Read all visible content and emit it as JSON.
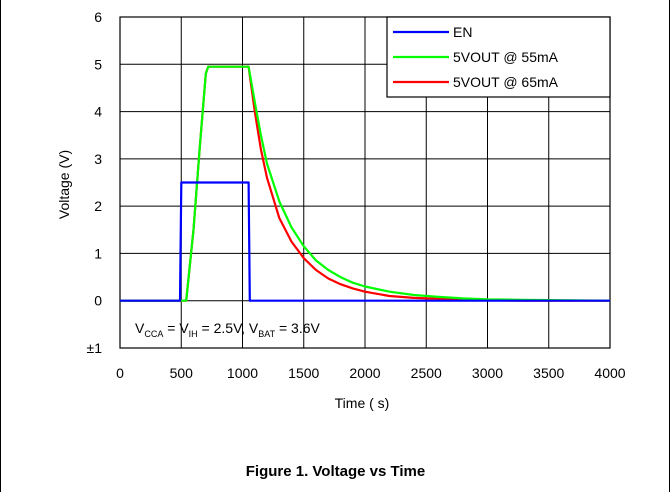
{
  "figure_caption": "Figure 1. Voltage vs Time",
  "chart_data": {
    "type": "line",
    "title": "",
    "xlabel": "Time (  s)",
    "ylabel": "Voltage (V)",
    "xlim": [
      0,
      4000
    ],
    "ylim": [
      -1,
      6
    ],
    "x_ticks": [
      0,
      500,
      1000,
      1500,
      2000,
      2500,
      3000,
      3500,
      4000
    ],
    "y_tick_labels": [
      "±1",
      "0",
      "1",
      "2",
      "3",
      "4",
      "5",
      "6"
    ],
    "y_ticks": [
      -1,
      0,
      1,
      2,
      3,
      4,
      5,
      6
    ],
    "grid": true,
    "legend_placement": "top-right",
    "annotation": {
      "parts": [
        {
          "t": "V",
          "sub": false
        },
        {
          "t": "CCA",
          "sub": true
        },
        {
          "t": " = V",
          "sub": false
        },
        {
          "t": "IH",
          "sub": true
        },
        {
          "t": " = 2.5V, V",
          "sub": false
        },
        {
          "t": "BAT",
          "sub": true
        },
        {
          "t": " = 3.6V",
          "sub": false
        }
      ]
    },
    "series": [
      {
        "name": "EN",
        "color": "#0000ff",
        "x": [
          0,
          490,
          500,
          1050,
          1060,
          4000
        ],
        "y": [
          0,
          0,
          2.5,
          2.5,
          0,
          0
        ]
      },
      {
        "name": "5VOUT @ 55mA",
        "color": "#00ff00",
        "x": [
          0,
          540,
          600,
          650,
          700,
          720,
          1050,
          1100,
          1150,
          1200,
          1300,
          1400,
          1500,
          1600,
          1700,
          1800,
          1900,
          2000,
          2200,
          2400,
          2600,
          2800,
          3000,
          3300,
          3600,
          4000
        ],
        "y": [
          0,
          0,
          1.5,
          3.2,
          4.8,
          4.95,
          4.95,
          4.2,
          3.5,
          2.9,
          2.1,
          1.55,
          1.15,
          0.85,
          0.65,
          0.5,
          0.38,
          0.3,
          0.19,
          0.12,
          0.08,
          0.05,
          0.03,
          0.02,
          0.01,
          0
        ]
      },
      {
        "name": "5VOUT @ 65mA",
        "color": "#ff0000",
        "x": [
          0,
          540,
          600,
          650,
          700,
          720,
          1050,
          1100,
          1150,
          1200,
          1300,
          1400,
          1500,
          1600,
          1700,
          1800,
          1900,
          2000,
          2200,
          2400,
          2600,
          2800,
          3000,
          3300,
          3600,
          4000
        ],
        "y": [
          0,
          0,
          1.5,
          3.2,
          4.8,
          4.95,
          4.95,
          4.0,
          3.2,
          2.6,
          1.75,
          1.25,
          0.9,
          0.65,
          0.47,
          0.35,
          0.26,
          0.19,
          0.1,
          0.06,
          0.04,
          0.02,
          0.01,
          0,
          0,
          0
        ]
      }
    ]
  }
}
